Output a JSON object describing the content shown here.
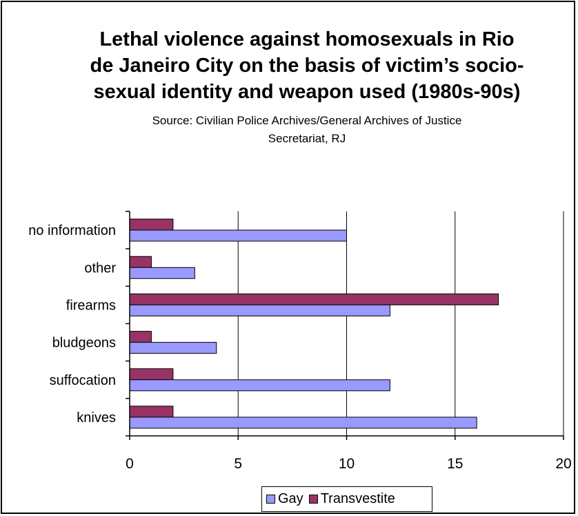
{
  "chart_data": {
    "type": "bar",
    "orientation": "horizontal",
    "title": "Lethal violence against homosexuals in Rio\nde Janeiro City on the basis of victim’s socio-\nsexual identity and weapon used (1980s-90s)",
    "subtitle": "Source: Civilian Police Archives/General Archives of Justice\nSecretariat, RJ",
    "categories": [
      "knives",
      "suffocation",
      "bludgeons",
      "firearms",
      "other",
      "no information"
    ],
    "series": [
      {
        "name": "Gay",
        "color": "#9999ff",
        "values": [
          16,
          12,
          4,
          12,
          3,
          10
        ]
      },
      {
        "name": "Transvestite",
        "color": "#993366",
        "values": [
          2,
          2,
          1,
          17,
          1,
          2
        ]
      }
    ],
    "xlim": [
      0,
      20
    ],
    "xticks": [
      0,
      5,
      10,
      15,
      20
    ],
    "grid": "vertical",
    "legend_position": "bottom"
  }
}
